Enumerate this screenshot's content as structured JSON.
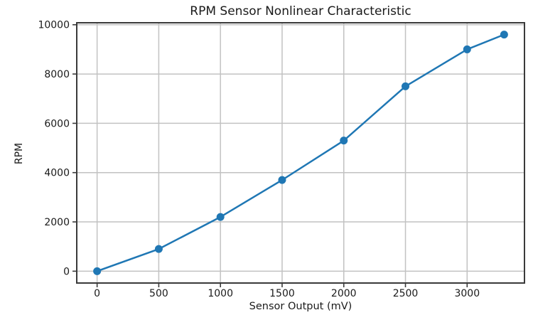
{
  "chart_data": {
    "type": "line",
    "title": "RPM Sensor Nonlinear Characteristic",
    "xlabel": "Sensor Output (mV)",
    "ylabel": "RPM",
    "x": [
      0,
      500,
      1000,
      1500,
      2000,
      2500,
      3000,
      3300
    ],
    "y": [
      0,
      900,
      2200,
      3700,
      5300,
      7500,
      9000,
      9600
    ],
    "xticks": [
      0,
      500,
      1000,
      1500,
      2000,
      2500,
      3000
    ],
    "yticks": [
      0,
      2000,
      4000,
      6000,
      8000,
      10000
    ],
    "xlim": [
      -165,
      3465
    ],
    "ylim": [
      -480,
      10080
    ],
    "grid": true,
    "legend": "none",
    "line_color": "#1f77b4",
    "marker": "circle-icon",
    "marker_color": "#1f77b4",
    "grid_color": "#c2c2c2",
    "spine_color": "#3a3a3a",
    "tick_color": "#3a3a3a"
  }
}
